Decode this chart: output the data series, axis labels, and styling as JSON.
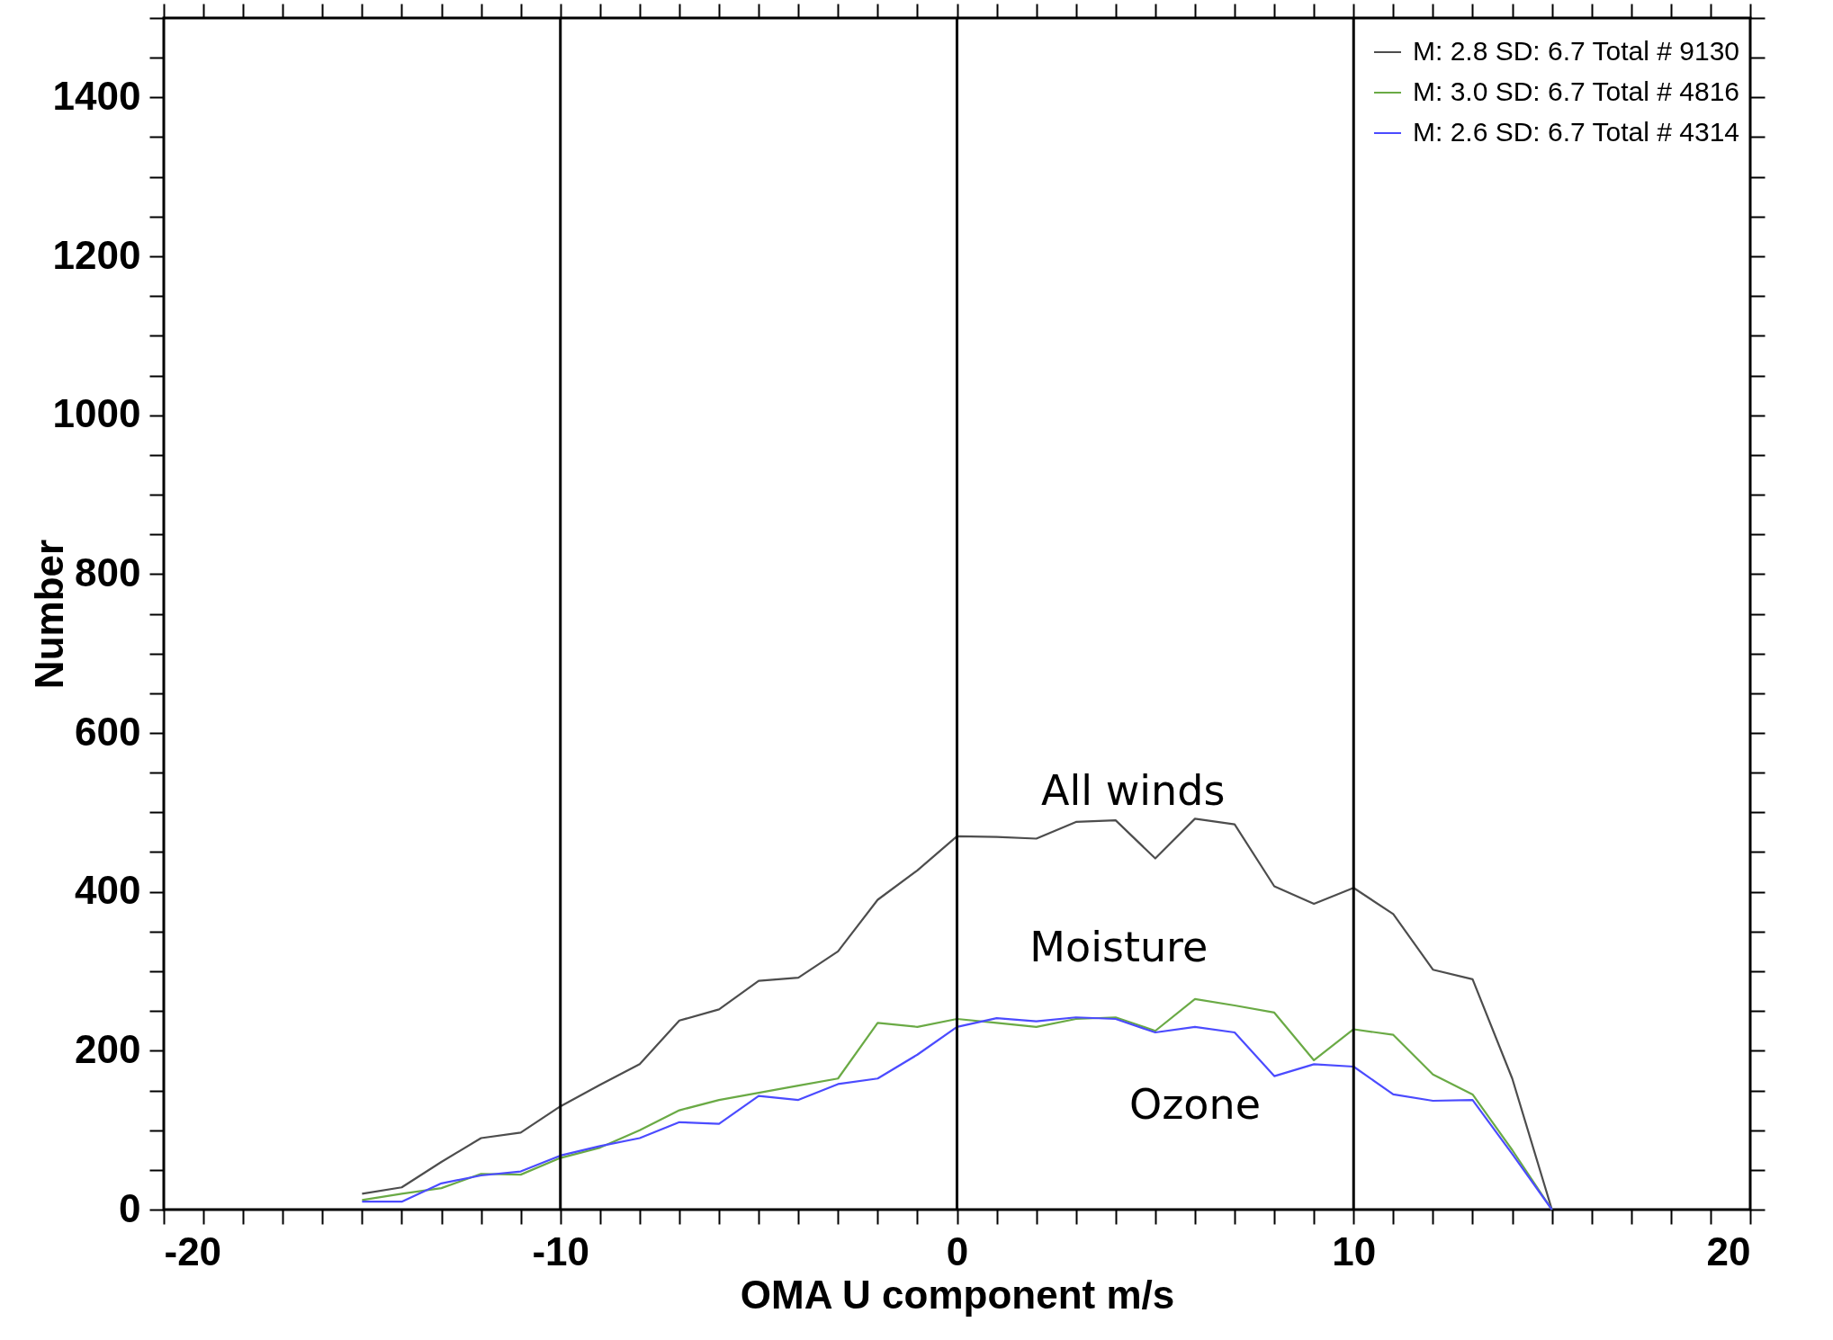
{
  "chart_data": {
    "type": "line",
    "xlabel": "OMA U component m/s",
    "ylabel": "Number",
    "x": [
      -15,
      -14,
      -13,
      -12,
      -11,
      -10,
      -9,
      -8,
      -7,
      -6,
      -5,
      -4,
      -3,
      -2,
      -1,
      0,
      1,
      2,
      3,
      4,
      5,
      6,
      7,
      8,
      9,
      10,
      11,
      12,
      13,
      14,
      15
    ],
    "series": [
      {
        "name": "M: 2.8 SD: 6.7 Total #  9130",
        "color": "#4d4d4d",
        "values": [
          20,
          28,
          60,
          90,
          97,
          130,
          157,
          183,
          238,
          252,
          288,
          292,
          325,
          390,
          427,
          470,
          469,
          467,
          488,
          490,
          442,
          492,
          485,
          407,
          385,
          405,
          372,
          302,
          290,
          165,
          0
        ]
      },
      {
        "name": "M: 3.0 SD: 6.7 Total #  4816",
        "color": "#6aaa45",
        "values": [
          12,
          20,
          27,
          45,
          44,
          65,
          78,
          100,
          125,
          138,
          147,
          156,
          165,
          235,
          230,
          240,
          235,
          230,
          240,
          242,
          225,
          265,
          257,
          248,
          188,
          227,
          220,
          170,
          145,
          75,
          0
        ]
      },
      {
        "name": "M: 2.6 SD: 6.7 Total #  4314",
        "color": "#4b4bff",
        "values": [
          10,
          10,
          33,
          43,
          48,
          68,
          80,
          90,
          110,
          108,
          143,
          138,
          158,
          165,
          195,
          230,
          241,
          237,
          242,
          240,
          223,
          230,
          223,
          168,
          183,
          180,
          145,
          137,
          138,
          70,
          0
        ]
      }
    ],
    "xlim": [
      -20,
      20
    ],
    "xticks": [
      -20,
      {
        "value": -19,
        "label": null
      },
      {
        "value": -18,
        "label": null
      },
      {
        "value": -17,
        "label": null
      },
      {
        "value": -16,
        "label": null
      },
      {
        "value": -15,
        "label": null
      },
      {
        "value": -14,
        "label": null
      },
      {
        "value": -13,
        "label": null
      },
      {
        "value": -12,
        "label": null
      },
      {
        "value": -11,
        "label": null
      },
      -10,
      {
        "value": -9,
        "label": null
      },
      {
        "value": -8,
        "label": null
      },
      {
        "value": -7,
        "label": null
      },
      {
        "value": -6,
        "label": null
      },
      {
        "value": -5,
        "label": null
      },
      {
        "value": -4,
        "label": null
      },
      {
        "value": -3,
        "label": null
      },
      {
        "value": -2,
        "label": null
      },
      {
        "value": -1,
        "label": null
      },
      0,
      {
        "value": 1,
        "label": null
      },
      {
        "value": 2,
        "label": null
      },
      {
        "value": 3,
        "label": null
      },
      {
        "value": 4,
        "label": null
      },
      {
        "value": 5,
        "label": null
      },
      {
        "value": 6,
        "label": null
      },
      {
        "value": 7,
        "label": null
      },
      {
        "value": 8,
        "label": null
      },
      {
        "value": 9,
        "label": null
      },
      10,
      {
        "value": 11,
        "label": null
      },
      {
        "value": 12,
        "label": null
      },
      {
        "value": 13,
        "label": null
      },
      {
        "value": 14,
        "label": null
      },
      {
        "value": 15,
        "label": null
      },
      {
        "value": 16,
        "label": null
      },
      {
        "value": 17,
        "label": null
      },
      {
        "value": 18,
        "label": null
      },
      {
        "value": 19,
        "label": null
      },
      20
    ],
    "ylim": [
      0,
      1500
    ],
    "yticks": [
      0,
      {
        "value": 50,
        "label": null
      },
      {
        "value": 100,
        "label": null
      },
      {
        "value": 150,
        "label": null
      },
      200,
      {
        "value": 250,
        "label": null
      },
      {
        "value": 300,
        "label": null
      },
      {
        "value": 350,
        "label": null
      },
      400,
      {
        "value": 450,
        "label": null
      },
      {
        "value": 500,
        "label": null
      },
      {
        "value": 550,
        "label": null
      },
      600,
      {
        "value": 650,
        "label": null
      },
      {
        "value": 700,
        "label": null
      },
      {
        "value": 750,
        "label": null
      },
      800,
      {
        "value": 850,
        "label": null
      },
      {
        "value": 900,
        "label": null
      },
      {
        "value": 950,
        "label": null
      },
      1000,
      {
        "value": 1050,
        "label": null
      },
      {
        "value": 1100,
        "label": null
      },
      {
        "value": 1150,
        "label": null
      },
      1200,
      {
        "value": 1250,
        "label": null
      },
      {
        "value": 1300,
        "label": null
      },
      {
        "value": 1350,
        "label": null
      },
      1400,
      {
        "value": 1450,
        "label": null
      },
      {
        "value": 1500,
        "label": null
      }
    ],
    "ref_lines": [
      {
        "axis": "x",
        "value": -10,
        "color": "#000000"
      },
      {
        "axis": "x",
        "value": 0,
        "color": "#000000"
      },
      {
        "axis": "x",
        "value": 10,
        "color": "#000000"
      }
    ],
    "annotations": [
      "All winds",
      "Moisture",
      "Ozone"
    ],
    "legend": "top right",
    "grid": false,
    "marker": "none",
    "line_style": "solid"
  }
}
